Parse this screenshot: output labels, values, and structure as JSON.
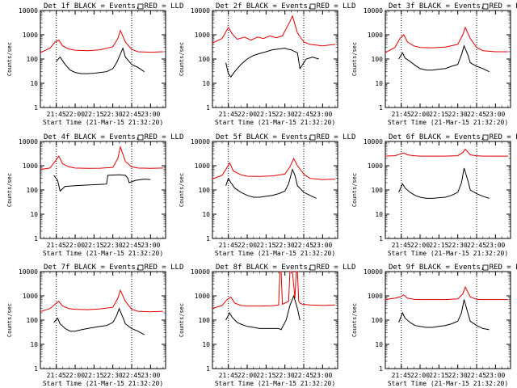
{
  "y_label": "Counts/sec",
  "x_label": "Start Time (21-Mar-15 21:32:20)",
  "x_ticks": [
    "21:45",
    "22:00",
    "22:15",
    "22:30",
    "22:45",
    "23:00"
  ],
  "y_ticks": [
    "1",
    "10",
    "100",
    "1000",
    "10000"
  ],
  "colors": {
    "black": "#000000",
    "red": "#e00000"
  },
  "chart_data": [
    {
      "type": "line",
      "title": "Det 1f BLACK = Events, RED = LLD",
      "yscale": "log",
      "ylim": [
        1,
        10000
      ],
      "xlim": [
        "21:32:20",
        "23:12:00"
      ],
      "markers": [
        "21:45",
        "22:45"
      ],
      "series": [
        {
          "name": "BLACK = Events",
          "x": [
            "21:45",
            "21:48",
            "21:52",
            "21:56",
            "22:00",
            "22:05",
            "22:10",
            "22:15",
            "22:20",
            "22:25",
            "22:30",
            "22:33",
            "22:35",
            "22:38",
            "22:40",
            "22:45",
            "22:50",
            "22:55"
          ],
          "values": [
            80,
            120,
            60,
            35,
            28,
            25,
            25,
            26,
            28,
            30,
            40,
            70,
            120,
            280,
            120,
            60,
            45,
            30
          ]
        },
        {
          "name": "RED = LLD",
          "x": [
            "21:32",
            "21:40",
            "21:44",
            "21:47",
            "21:50",
            "21:55",
            "22:00",
            "22:10",
            "22:20",
            "22:30",
            "22:34",
            "22:36",
            "22:40",
            "22:45",
            "22:50",
            "23:00",
            "23:10"
          ],
          "values": [
            180,
            280,
            500,
            600,
            350,
            260,
            230,
            220,
            240,
            320,
            700,
            1500,
            500,
            250,
            200,
            190,
            200
          ]
        }
      ]
    },
    {
      "type": "line",
      "title": "Det 2f BLACK = Events, RED = LLD",
      "yscale": "log",
      "ylim": [
        1,
        10000
      ],
      "xlim": [
        "21:32:20",
        "23:12:00"
      ],
      "markers": [
        "21:45",
        "22:45"
      ],
      "series": [
        {
          "name": "BLACK = Events",
          "x": [
            "21:43",
            "21:45",
            "21:47",
            "21:50",
            "21:55",
            "22:00",
            "22:05",
            "22:10",
            "22:15",
            "22:20",
            "22:25",
            "22:30",
            "22:33",
            "22:35",
            "22:40",
            "22:42",
            "22:47",
            "22:52",
            "22:57"
          ],
          "values": [
            70,
            25,
            18,
            30,
            60,
            100,
            140,
            170,
            200,
            240,
            260,
            280,
            250,
            240,
            180,
            40,
            100,
            120,
            100
          ]
        },
        {
          "name": "RED = LLD",
          "x": [
            "21:32",
            "21:40",
            "21:45",
            "21:48",
            "21:52",
            "21:58",
            "22:03",
            "22:08",
            "22:13",
            "22:18",
            "22:23",
            "22:28",
            "22:34",
            "22:36",
            "22:40",
            "22:45",
            "22:50",
            "23:00",
            "23:10"
          ],
          "values": [
            450,
            700,
            2000,
            1100,
            650,
            800,
            600,
            800,
            700,
            900,
            750,
            900,
            3500,
            6000,
            1200,
            500,
            400,
            350,
            400
          ]
        }
      ]
    },
    {
      "type": "line",
      "title": "Det 3f BLACK = Events, RED = LLD",
      "yscale": "log",
      "ylim": [
        1,
        10000
      ],
      "xlim": [
        "21:32:20",
        "23:12:00"
      ],
      "markers": [
        "21:45",
        "22:45"
      ],
      "series": [
        {
          "name": "BLACK = Events",
          "x": [
            "21:43",
            "21:46",
            "21:48",
            "21:52",
            "21:56",
            "22:00",
            "22:05",
            "22:10",
            "22:15",
            "22:20",
            "22:25",
            "22:30",
            "22:33",
            "22:35",
            "22:38",
            "22:40",
            "22:45",
            "22:50",
            "22:55"
          ],
          "values": [
            100,
            180,
            110,
            80,
            55,
            40,
            35,
            35,
            38,
            40,
            50,
            60,
            150,
            350,
            150,
            70,
            50,
            40,
            30
          ]
        },
        {
          "name": "RED = LLD",
          "x": [
            "21:32",
            "21:40",
            "21:44",
            "21:47",
            "21:50",
            "21:55",
            "22:00",
            "22:10",
            "22:20",
            "22:30",
            "22:34",
            "22:36",
            "22:40",
            "22:45",
            "22:50",
            "23:00",
            "23:10"
          ],
          "values": [
            180,
            300,
            700,
            1000,
            500,
            350,
            300,
            290,
            310,
            400,
            1000,
            2000,
            700,
            300,
            220,
            200,
            200
          ]
        }
      ]
    },
    {
      "type": "line",
      "title": "Det 4f BLACK = Events, RED = LLD",
      "yscale": "log",
      "ylim": [
        1,
        10000
      ],
      "xlim": [
        "21:32:20",
        "23:12:00"
      ],
      "markers": [
        "21:45",
        "22:45"
      ],
      "series": [
        {
          "name": "BLACK = Events",
          "x": [
            "21:43",
            "21:46",
            "21:48",
            "21:52",
            "22:00",
            "22:10",
            "22:20",
            "22:25",
            "22:26",
            "22:35",
            "22:40",
            "22:42",
            "22:43",
            "22:48",
            "22:55",
            "23:00"
          ],
          "values": [
            400,
            250,
            90,
            140,
            150,
            160,
            170,
            175,
            400,
            420,
            400,
            300,
            200,
            250,
            280,
            270
          ]
        },
        {
          "name": "RED = LLD",
          "x": [
            "21:32",
            "21:40",
            "21:44",
            "21:47",
            "21:50",
            "21:55",
            "22:00",
            "22:10",
            "22:20",
            "22:30",
            "22:34",
            "22:36",
            "22:40",
            "22:45",
            "22:50",
            "23:00",
            "23:10"
          ],
          "values": [
            700,
            800,
            1500,
            2500,
            1200,
            900,
            800,
            780,
            790,
            850,
            2000,
            6000,
            1500,
            900,
            800,
            780,
            800
          ]
        }
      ]
    },
    {
      "type": "line",
      "title": "Det 5f BLACK = Events, RED = LLD",
      "yscale": "log",
      "ylim": [
        1,
        10000
      ],
      "xlim": [
        "21:32:20",
        "23:12:00"
      ],
      "markers": [
        "21:45",
        "22:45"
      ],
      "series": [
        {
          "name": "BLACK = Events",
          "x": [
            "21:43",
            "21:45",
            "21:47",
            "21:50",
            "21:55",
            "22:00",
            "22:05",
            "22:10",
            "22:15",
            "22:20",
            "22:25",
            "22:30",
            "22:33",
            "22:36",
            "22:38",
            "22:40",
            "22:45",
            "22:50",
            "22:55"
          ],
          "values": [
            150,
            300,
            200,
            120,
            80,
            60,
            50,
            50,
            55,
            60,
            70,
            90,
            180,
            700,
            400,
            150,
            80,
            60,
            45
          ]
        },
        {
          "name": "RED = LLD",
          "x": [
            "21:32",
            "21:40",
            "21:43",
            "21:46",
            "21:49",
            "21:55",
            "22:00",
            "22:10",
            "22:20",
            "22:30",
            "22:34",
            "22:37",
            "22:40",
            "22:45",
            "22:50",
            "23:00",
            "23:10"
          ],
          "values": [
            280,
            400,
            700,
            1300,
            600,
            420,
            370,
            360,
            380,
            450,
            900,
            2000,
            1000,
            450,
            300,
            270,
            280
          ]
        }
      ]
    },
    {
      "type": "line",
      "title": "Det 6f BLACK = Events, RED = LLD",
      "yscale": "log",
      "ylim": [
        1,
        10000
      ],
      "xlim": [
        "21:32:20",
        "23:12:00"
      ],
      "markers": [
        "21:45",
        "22:45"
      ],
      "series": [
        {
          "name": "BLACK = Events",
          "x": [
            "21:43",
            "21:46",
            "21:48",
            "21:52",
            "21:56",
            "22:00",
            "22:05",
            "22:10",
            "22:15",
            "22:20",
            "22:25",
            "22:30",
            "22:33",
            "22:35",
            "22:38",
            "22:40",
            "22:45",
            "22:50",
            "22:55"
          ],
          "values": [
            80,
            180,
            120,
            80,
            60,
            50,
            45,
            45,
            48,
            50,
            60,
            80,
            200,
            800,
            250,
            100,
            70,
            55,
            45
          ]
        },
        {
          "name": "RED = LLD",
          "x": [
            "21:32",
            "21:40",
            "21:44",
            "21:47",
            "21:50",
            "21:55",
            "22:00",
            "22:10",
            "22:20",
            "22:30",
            "22:34",
            "22:36",
            "22:40",
            "22:45",
            "22:50",
            "23:00",
            "23:10"
          ],
          "values": [
            2500,
            2600,
            3000,
            3400,
            2800,
            2600,
            2500,
            2500,
            2500,
            2600,
            3500,
            4800,
            2800,
            2600,
            2500,
            2500,
            2500
          ]
        }
      ]
    },
    {
      "type": "line",
      "title": "Det 7f BLACK = Events, RED = LLD",
      "yscale": "log",
      "ylim": [
        1,
        10000
      ],
      "xlim": [
        "21:32:20",
        "23:12:00"
      ],
      "markers": [
        "21:45",
        "22:45"
      ],
      "series": [
        {
          "name": "BLACK = Events",
          "x": [
            "21:43",
            "21:46",
            "21:48",
            "21:52",
            "21:56",
            "22:00",
            "22:05",
            "22:10",
            "22:15",
            "22:20",
            "22:25",
            "22:30",
            "22:33",
            "22:35",
            "22:38",
            "22:40",
            "22:45",
            "22:50",
            "22:55"
          ],
          "values": [
            80,
            120,
            70,
            45,
            35,
            35,
            40,
            45,
            50,
            55,
            60,
            80,
            150,
            300,
            130,
            70,
            45,
            35,
            25
          ]
        },
        {
          "name": "RED = LLD",
          "x": [
            "21:32",
            "21:40",
            "21:44",
            "21:47",
            "21:50",
            "21:55",
            "22:00",
            "22:10",
            "22:20",
            "22:30",
            "22:34",
            "22:36",
            "22:40",
            "22:45",
            "22:50",
            "23:00",
            "23:10"
          ],
          "values": [
            220,
            300,
            450,
            600,
            380,
            300,
            280,
            270,
            290,
            340,
            800,
            1700,
            600,
            280,
            230,
            220,
            230
          ]
        }
      ]
    },
    {
      "type": "line",
      "title": "Det 8f BLACK = Events, RED = LLD",
      "yscale": "log",
      "ylim": [
        1,
        10000
      ],
      "xlim": [
        "21:32:20",
        "23:12:00"
      ],
      "markers": [
        "21:45",
        "22:45"
      ],
      "series": [
        {
          "name": "BLACK = Events",
          "x": [
            "21:43",
            "21:46",
            "21:48",
            "21:52",
            "21:56",
            "22:00",
            "22:05",
            "22:10",
            "22:15",
            "22:20",
            "22:25",
            "22:27",
            "22:31",
            "22:34",
            "22:37",
            "22:40",
            "22:42"
          ],
          "values": [
            100,
            200,
            130,
            80,
            65,
            55,
            50,
            45,
            45,
            45,
            45,
            40,
            100,
            400,
            1000,
            300,
            100
          ]
        },
        {
          "name": "RED = LLD",
          "x": [
            "21:32",
            "21:40",
            "21:44",
            "21:47",
            "21:50",
            "21:55",
            "22:00",
            "22:10",
            "22:20",
            "22:25",
            "22:26",
            "22:27",
            "22:28",
            "22:30",
            "22:33",
            "22:34",
            "22:36",
            "22:38",
            "22:39",
            "22:40",
            "22:41",
            "22:42",
            "22:44",
            "22:50",
            "23:00",
            "23:10"
          ],
          "values": [
            300,
            400,
            700,
            900,
            500,
            400,
            380,
            380,
            390,
            420,
            10000,
            10000,
            450,
            500,
            600,
            10000,
            10000,
            800,
            10000,
            10000,
            600,
            500,
            450,
            420,
            400,
            420
          ]
        }
      ]
    },
    {
      "type": "line",
      "title": "Det 9f BLACK = Events, RED = LLD",
      "yscale": "log",
      "ylim": [
        1,
        10000
      ],
      "xlim": [
        "21:32:20",
        "23:12:00"
      ],
      "markers": [
        "21:45",
        "22:45"
      ],
      "series": [
        {
          "name": "BLACK = Events",
          "x": [
            "21:43",
            "21:46",
            "21:48",
            "21:52",
            "21:56",
            "22:00",
            "22:05",
            "22:10",
            "22:15",
            "22:20",
            "22:25",
            "22:30",
            "22:33",
            "22:35",
            "22:38",
            "22:40",
            "22:45",
            "22:50",
            "22:55"
          ],
          "values": [
            80,
            200,
            120,
            80,
            60,
            55,
            50,
            50,
            55,
            60,
            70,
            90,
            200,
            700,
            200,
            90,
            60,
            45,
            40
          ]
        },
        {
          "name": "RED = LLD",
          "x": [
            "21:32",
            "21:40",
            "21:44",
            "21:47",
            "21:50",
            "21:55",
            "22:00",
            "22:10",
            "22:20",
            "22:30",
            "22:34",
            "22:36",
            "22:40",
            "22:45",
            "22:50",
            "23:00",
            "23:10"
          ],
          "values": [
            700,
            800,
            900,
            1100,
            800,
            720,
            700,
            700,
            700,
            750,
            1200,
            2300,
            900,
            720,
            700,
            700,
            700
          ]
        }
      ]
    }
  ]
}
